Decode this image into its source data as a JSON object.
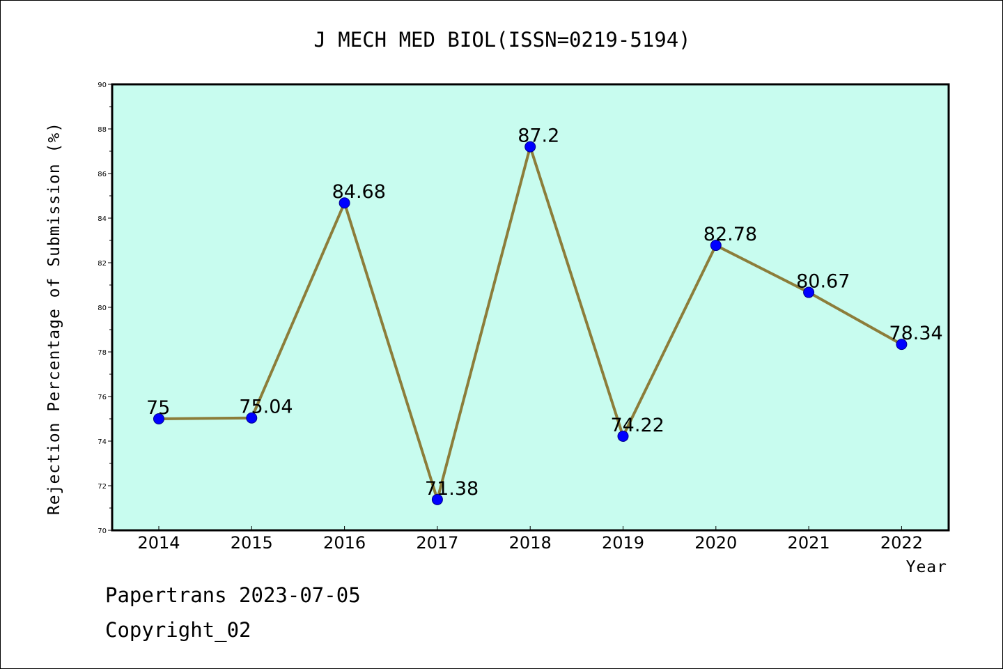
{
  "chart_data": {
    "type": "line",
    "title": "J MECH MED BIOL(ISSN=0219-5194)",
    "xlabel": "Year",
    "ylabel": "Rejection Percentage of Submission (%)",
    "categories": [
      "2014",
      "2015",
      "2016",
      "2017",
      "2018",
      "2019",
      "2020",
      "2021",
      "2022"
    ],
    "series": [
      {
        "values": [
          75,
          75.04,
          84.68,
          71.38,
          87.2,
          74.22,
          82.78,
          80.67,
          78.34
        ],
        "labels": [
          "75",
          "75.04",
          "84.68",
          "71.38",
          "87.2",
          "74.22",
          "82.78",
          "80.67",
          "78.34"
        ]
      }
    ],
    "ylim": [
      70,
      90
    ],
    "yticks": [
      "70",
      "72",
      "74",
      "76",
      "78",
      "80",
      "82",
      "84",
      "86",
      "88",
      "90"
    ],
    "colors": {
      "plot_background": "#c8fcef",
      "line": "#8c7d3a",
      "marker": "#0000ff"
    },
    "grid": false,
    "legend": "none"
  },
  "footer": {
    "line1": "Papertrans 2023-07-05",
    "line2": "Copyright_02"
  }
}
